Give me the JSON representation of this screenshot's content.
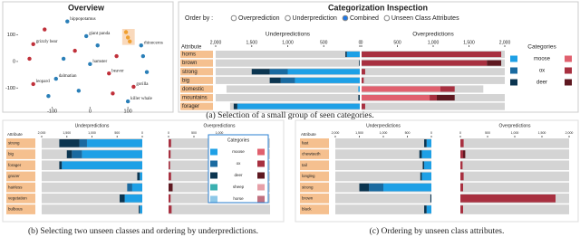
{
  "overview": {
    "title": "Overview",
    "xlim": [
      -190,
      205
    ],
    "ylim": [
      -170,
      183
    ],
    "xticks": [
      -100,
      0,
      100
    ],
    "yticks": [
      100,
      0,
      -100
    ],
    "points": [
      {
        "x": -60,
        "y": 150,
        "color": "#2a7fb8",
        "label": "hippopotamus"
      },
      {
        "x": -150,
        "y": 65,
        "color": "#c0303a",
        "label": "grizzly bear"
      },
      {
        "x": -10,
        "y": 95,
        "color": "#2a7fb8",
        "label": "giant panda"
      },
      {
        "x": 135,
        "y": 60,
        "color": "#2a7fb8",
        "label": "rhinoceros"
      },
      {
        "x": 0,
        "y": -10,
        "color": "#2a7fb8",
        "label": "hamster"
      },
      {
        "x": 50,
        "y": -45,
        "color": "#c0303a",
        "label": "beaver"
      },
      {
        "x": -90,
        "y": -65,
        "color": "#2a7fb8",
        "label": "dalmatian"
      },
      {
        "x": -150,
        "y": -85,
        "color": "#c0303a",
        "label": "leopard"
      },
      {
        "x": 100,
        "y": -150,
        "color": "#2a7fb8",
        "label": "killer whale"
      },
      {
        "x": 115,
        "y": -95,
        "color": "#c0303a",
        "label": "gorilla"
      },
      {
        "x": -120,
        "y": 120,
        "color": "#c0303a"
      },
      {
        "x": -40,
        "y": 40,
        "color": "#c0303a"
      },
      {
        "x": 20,
        "y": 60,
        "color": "#2a7fb8"
      },
      {
        "x": 95,
        "y": 110,
        "color": "#f0a030"
      },
      {
        "x": 100,
        "y": 90,
        "color": "#f0a030"
      },
      {
        "x": 105,
        "y": 75,
        "color": "#f0a030"
      },
      {
        "x": -160,
        "y": 10,
        "color": "#c0303a"
      },
      {
        "x": -70,
        "y": 10,
        "color": "#2a7fb8"
      },
      {
        "x": 70,
        "y": 20,
        "color": "#c0303a"
      },
      {
        "x": 140,
        "y": 20,
        "color": "#2a7fb8"
      },
      {
        "x": -30,
        "y": -110,
        "color": "#2a7fb8"
      },
      {
        "x": 60,
        "y": -120,
        "color": "#c0303a"
      },
      {
        "x": 150,
        "y": -40,
        "color": "#2a7fb8"
      },
      {
        "x": -110,
        "y": -130,
        "color": "#2a7fb8"
      }
    ]
  },
  "panel_a": {
    "title": "Categorization Inspection",
    "order_by": "Order by :",
    "options": [
      "Overprediction",
      "Underprediction",
      "Combined",
      "Unseen Class Attributes"
    ],
    "selected_option": 2,
    "attribute_header": "Attribute",
    "under_title": "Underpredictions",
    "over_title": "Overpredictions",
    "lim": 2000,
    "under_ticks": [
      {
        "value": 2000,
        "label": "2,000"
      },
      {
        "value": 1500,
        "label": "1,500"
      },
      {
        "value": 1000,
        "label": "1,000"
      },
      500,
      0
    ],
    "over_ticks": [
      0,
      500,
      {
        "value": 1000,
        "label": "1,000"
      },
      {
        "value": 1500,
        "label": "1,500"
      },
      {
        "value": 2000,
        "label": "2,000"
      }
    ],
    "legend_title": "Categories",
    "categories": [
      {
        "name": "moose",
        "under_color": "#1ea0e6",
        "over_color": "#e0606e"
      },
      {
        "name": "ox",
        "under_color": "#1a6aa0",
        "over_color": "#a83040"
      },
      {
        "name": "deer",
        "under_color": "#0b3550",
        "over_color": "#5e1820"
      }
    ],
    "rows": [
      {
        "attribute": "horns",
        "under_total": 2000,
        "under": [
          180,
          0,
          20
        ],
        "over_total": 2000,
        "over": [
          0,
          1950,
          0
        ]
      },
      {
        "attribute": "brown",
        "under_total": 2000,
        "under": [
          0,
          0,
          10
        ],
        "over_total": 2000,
        "over": [
          0,
          1750,
          200
        ]
      },
      {
        "attribute": "strong",
        "under_total": 2000,
        "under": [
          1000,
          250,
          250
        ],
        "over_total": 2000,
        "over": [
          0,
          50,
          0
        ]
      },
      {
        "attribute": "big",
        "under_total": 2000,
        "under": [
          900,
          200,
          150
        ],
        "over_total": 2000,
        "over": [
          0,
          30,
          0
        ]
      },
      {
        "attribute": "domestic",
        "under_total": 1850,
        "under": [
          20,
          0,
          0
        ],
        "over_total": 1700,
        "over": [
          1100,
          200,
          0
        ]
      },
      {
        "attribute": "mountains",
        "under_total": 2000,
        "under": [
          0,
          0,
          20
        ],
        "over_total": 2000,
        "over": [
          950,
          100,
          250
        ]
      },
      {
        "attribute": "forager",
        "under_total": 1800,
        "under": [
          1700,
          0,
          50
        ],
        "over_total": 2000,
        "over": [
          0,
          50,
          0
        ]
      }
    ]
  },
  "panel_b": {
    "attribute_header": "Attribute",
    "under_title": "Underpredictions",
    "over_title": "Overpredictions",
    "lim": 2000,
    "under_ticks": [
      {
        "value": 2000,
        "label": "2,000"
      },
      {
        "value": 1500,
        "label": "1,500"
      },
      {
        "value": 1000,
        "label": "1,000"
      },
      500,
      0
    ],
    "over_ticks": [
      0,
      500,
      {
        "value": 1000,
        "label": "1,000"
      }
    ],
    "legend_title": "Categories",
    "categories": [
      {
        "name": "moose",
        "under_color": "#1ea0e6",
        "over_color": "#e0606e"
      },
      {
        "name": "ox",
        "under_color": "#1a6aa0",
        "over_color": "#a83040"
      },
      {
        "name": "deer",
        "under_color": "#0b3550",
        "over_color": "#5e1820"
      },
      {
        "name": "sheep",
        "under_color": "#3bb0b0",
        "over_color": "#e6a0a8"
      },
      {
        "name": "horse",
        "under_color": "#8ec8e8",
        "over_color": "#c07080"
      }
    ],
    "rows": [
      {
        "attribute": "strong",
        "under_total": 2000,
        "under": [
          1100,
          150,
          400,
          0,
          0
        ],
        "over_total": 2000,
        "over": [
          0,
          50,
          0,
          0,
          0
        ]
      },
      {
        "attribute": "big",
        "under_total": 2000,
        "under": [
          1200,
          200,
          100,
          0,
          0
        ],
        "over_total": 2000,
        "over": [
          0,
          40,
          0,
          0,
          0
        ]
      },
      {
        "attribute": "forager",
        "under_total": 2000,
        "under": [
          1600,
          0,
          50,
          0,
          0
        ],
        "over_total": 2000,
        "over": [
          0,
          30,
          0,
          0,
          0
        ]
      },
      {
        "attribute": "grazer",
        "under_total": 2000,
        "under": [
          50,
          0,
          50,
          0,
          0
        ],
        "over_total": 2000,
        "over": [
          0,
          50,
          0,
          0,
          0
        ]
      },
      {
        "attribute": "hairless",
        "under_total": 2000,
        "under": [
          200,
          100,
          0,
          0,
          0
        ],
        "over_total": 2000,
        "over": [
          0,
          0,
          80,
          0,
          0
        ]
      },
      {
        "attribute": "vegetation",
        "under_total": 2000,
        "under": [
          350,
          0,
          100,
          0,
          0
        ],
        "over_total": 2000,
        "over": [
          0,
          40,
          0,
          0,
          0
        ]
      },
      {
        "attribute": "bulbous",
        "under_total": 2000,
        "under": [
          50,
          0,
          20,
          0,
          0
        ],
        "over_total": 2000,
        "over": [
          0,
          60,
          0,
          0,
          0
        ]
      }
    ]
  },
  "panel_c": {
    "attribute_header": "Attribute",
    "under_title": "Underpredictions",
    "over_title": "Overpredictions",
    "lim": 2000,
    "under_ticks": [
      {
        "value": 2000,
        "label": "2,000"
      },
      {
        "value": 1500,
        "label": "1,500"
      },
      {
        "value": 1000,
        "label": "1,000"
      },
      500,
      0
    ],
    "over_ticks": [
      0,
      500,
      {
        "value": 1000,
        "label": "1,000"
      },
      {
        "value": 1500,
        "label": "1,500"
      },
      {
        "value": 2000,
        "label": "2,000"
      }
    ],
    "categories": [
      {
        "under_color": "#1ea0e6",
        "over_color": "#e0606e"
      },
      {
        "under_color": "#1a6aa0",
        "over_color": "#a83040"
      },
      {
        "under_color": "#0b3550",
        "over_color": "#5e1820"
      }
    ],
    "rows": [
      {
        "attribute": "fast",
        "under_total": 2000,
        "under": [
          100,
          0,
          50
        ],
        "over_total": 2000,
        "over": [
          0,
          60,
          0
        ]
      },
      {
        "attribute": "chewteeth",
        "under_total": 2000,
        "under": [
          200,
          0,
          50
        ],
        "over_total": 2000,
        "over": [
          0,
          50,
          40
        ]
      },
      {
        "attribute": "tail",
        "under_total": 2000,
        "under": [
          150,
          0,
          30
        ],
        "over_total": 2000,
        "over": [
          0,
          40,
          0
        ]
      },
      {
        "attribute": "longleg",
        "under_total": 2000,
        "under": [
          200,
          0,
          30
        ],
        "over_total": 2000,
        "over": [
          0,
          60,
          0
        ]
      },
      {
        "attribute": "strong",
        "under_total": 2000,
        "under": [
          1000,
          300,
          200
        ],
        "over_total": 2000,
        "over": [
          0,
          50,
          0
        ]
      },
      {
        "attribute": "brown",
        "under_total": 2000,
        "under": [
          0,
          0,
          20
        ],
        "over_total": 2000,
        "over": [
          0,
          1750,
          0
        ]
      },
      {
        "attribute": "black",
        "under_total": 2000,
        "under": [
          100,
          0,
          50
        ],
        "over_total": 2000,
        "over": [
          0,
          50,
          0
        ]
      }
    ]
  },
  "captions": [
    "(a) Selection of a small group of seen categories.",
    "(b) Selecting two unseen classes and ordering by underpredictions.",
    "(c) Ordering by unseen class attributes."
  ]
}
